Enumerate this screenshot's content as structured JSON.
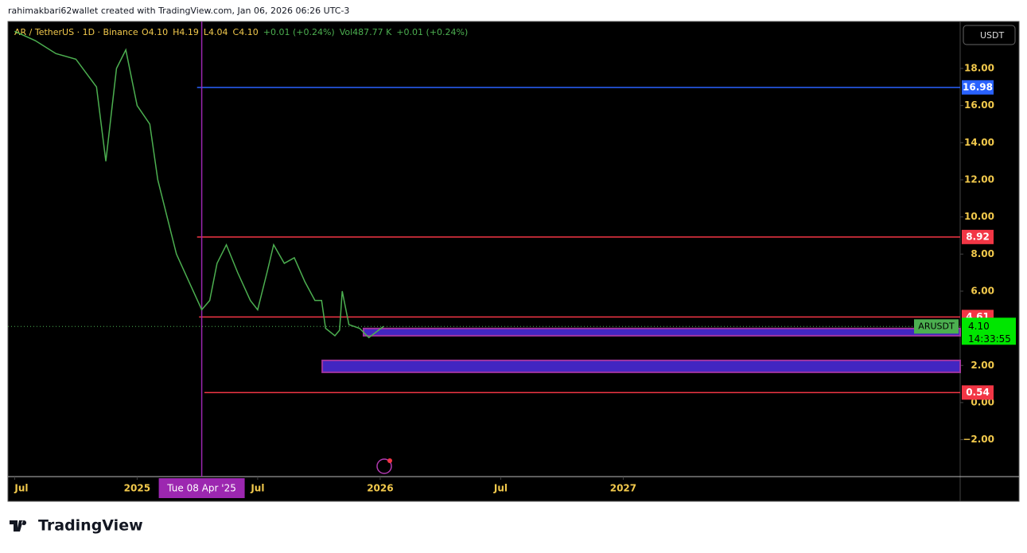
{
  "header": {
    "text": "rahimakbari62wallet created with TradingView.com, Jan 06, 2026 06:26 UTC-3"
  },
  "footer": {
    "brand": "TradingView"
  },
  "chart_data": {
    "type": "line",
    "symbol_title": "AR / TetherUS · 1D · Binance",
    "legend_values": [
      "O4.10",
      "H4.19",
      "L4.04",
      "C4.10",
      "+0.01 (+0.24%)",
      "Vol487.77 K",
      "+0.01 (+0.24%)"
    ],
    "currency": "USDT",
    "color": "#4caf50",
    "x": [
      "2024-07-01",
      "2024-08-01",
      "2024-09-01",
      "2024-10-01",
      "2024-11-01",
      "2024-11-15",
      "2024-12-01",
      "2024-12-15",
      "2025-01-01",
      "2025-01-20",
      "2025-02-01",
      "2025-02-15",
      "2025-03-01",
      "2025-03-20",
      "2025-04-08",
      "2025-04-20",
      "2025-05-01",
      "2025-05-15",
      "2025-06-01",
      "2025-06-20",
      "2025-07-01",
      "2025-07-15",
      "2025-07-25",
      "2025-08-10",
      "2025-08-25",
      "2025-09-10",
      "2025-09-25",
      "2025-10-05",
      "2025-10-11",
      "2025-10-25",
      "2025-11-01",
      "2025-11-05",
      "2025-11-15",
      "2025-12-01",
      "2025-12-15",
      "2026-01-06"
    ],
    "values": [
      20,
      19.5,
      18.8,
      18.5,
      17,
      13,
      18,
      19,
      16,
      15,
      12,
      10,
      8,
      6.5,
      5,
      5.5,
      7.5,
      8.5,
      7,
      5.5,
      5,
      7,
      8.5,
      7.5,
      7.8,
      6.5,
      5.5,
      5.5,
      4.0,
      3.6,
      3.9,
      6,
      4.2,
      4.0,
      3.5,
      4.1
    ],
    "xlim": [
      "2024-06-21",
      "2028-05-21"
    ],
    "xticks": [
      {
        "value": "2024-07-01",
        "label": "Jul"
      },
      {
        "value": "2025-01-01",
        "label": "2025"
      },
      {
        "value": "2025-07-01",
        "label": "Jul"
      },
      {
        "value": "2026-01-01",
        "label": "2026"
      },
      {
        "value": "2026-07-01",
        "label": "Jul"
      },
      {
        "value": "2027-01-01",
        "label": "2027"
      }
    ],
    "ylim": [
      -3.99,
      20.53
    ],
    "yticks": [
      {
        "value": -2,
        "label": "−2.00"
      },
      {
        "value": 0,
        "label": "0.00"
      },
      {
        "value": 2,
        "label": "2.00"
      },
      {
        "value": 6,
        "label": "6.00"
      },
      {
        "value": 8,
        "label": "8.00"
      },
      {
        "value": 10,
        "label": "10.00"
      },
      {
        "value": 12,
        "label": "12.00"
      },
      {
        "value": 14,
        "label": "14.00"
      },
      {
        "value": 16,
        "label": "16.00"
      },
      {
        "value": 18,
        "label": "18.00"
      }
    ],
    "grid": false,
    "levels": [
      {
        "value": 16.98,
        "color": "#2962ff",
        "from": "2025-04-01"
      },
      {
        "value": 8.92,
        "color": "#f23645",
        "from": "2025-04-01"
      },
      {
        "value": 4.61,
        "color": "#f23645",
        "from": "2025-04-04"
      },
      {
        "value": 0.54,
        "color": "#f23645",
        "from": "2025-04-12"
      }
    ],
    "zones": [
      {
        "low": 3.6,
        "high": 3.99,
        "from": "2025-12-07"
      },
      {
        "low": 1.63,
        "high": 2.27,
        "from": "2025-10-06"
      }
    ],
    "last": {
      "value": 4.1,
      "label": "4.10",
      "symbol": "ARUSDT",
      "countdown": "14:33:55"
    },
    "crosshair": {
      "x": "2025-04-08",
      "label": "Tue 08 Apr '25"
    }
  }
}
